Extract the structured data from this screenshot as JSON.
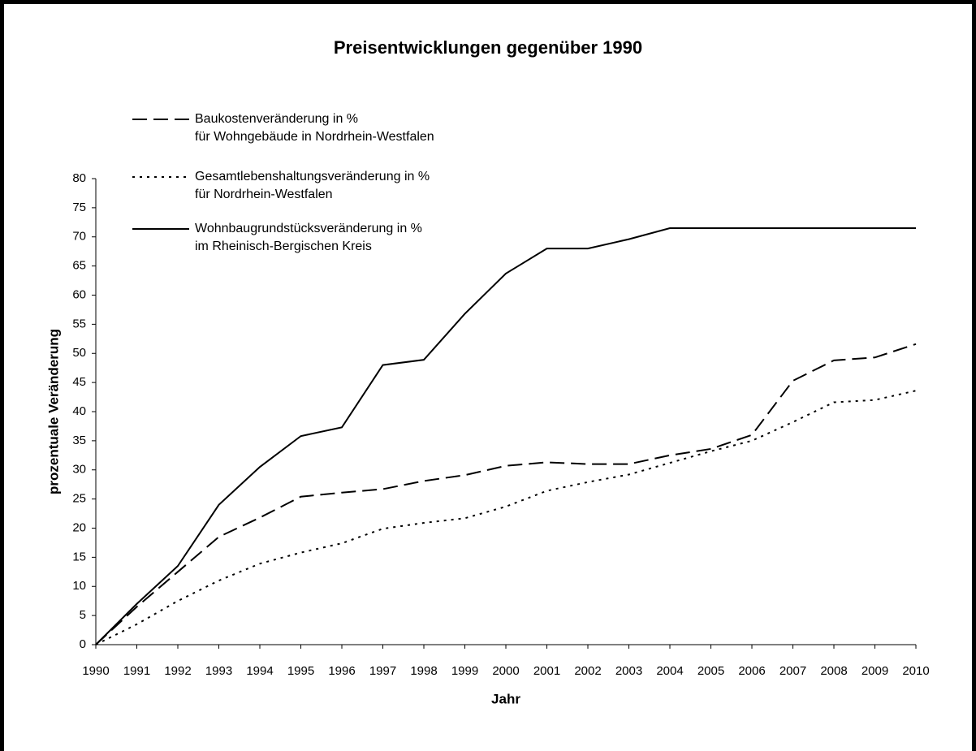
{
  "chart_data": {
    "type": "line",
    "title": "Preisentwicklungen gegenüber 1990",
    "x_label": "Jahr",
    "y_label": "prozentuale Veränderung",
    "x": [
      1990,
      1991,
      1992,
      1993,
      1994,
      1995,
      1996,
      1997,
      1998,
      1999,
      2000,
      2001,
      2002,
      2003,
      2004,
      2005,
      2006,
      2007,
      2008,
      2009,
      2010
    ],
    "xlim": [
      1990,
      2010
    ],
    "xticks": [
      1990,
      1991,
      1992,
      1993,
      1994,
      1995,
      1996,
      1997,
      1998,
      1999,
      2000,
      2001,
      2002,
      2003,
      2004,
      2005,
      2006,
      2007,
      2008,
      2009,
      2010
    ],
    "ylim": [
      0,
      80
    ],
    "yticks": [
      0,
      5,
      10,
      15,
      20,
      25,
      30,
      35,
      40,
      45,
      50,
      55,
      60,
      65,
      70,
      75,
      80
    ],
    "series": [
      {
        "name": "Baukostenveränderung in %\nfür Wohngebäude in Nordrhein-Westfalen",
        "color": "#000000",
        "line_style": "dashed",
        "values": [
          0,
          6.5,
          12.5,
          18.5,
          21.8,
          25.4,
          26.1,
          26.7,
          28.1,
          29.1,
          30.7,
          31.3,
          31,
          31,
          32.5,
          33.6,
          36,
          45.3,
          48.8,
          49.3,
          51.6
        ]
      },
      {
        "name": "Gesamtlebenshaltungsveränderung in %\nfür Nordrhein-Westfalen",
        "color": "#000000",
        "line_style": "dotted",
        "values": [
          0,
          3.5,
          7.5,
          11,
          13.9,
          15.8,
          17.4,
          19.9,
          20.9,
          21.7,
          23.7,
          26.4,
          27.9,
          29.2,
          31.2,
          33.2,
          35,
          38.2,
          41.6,
          42,
          43.6
        ]
      },
      {
        "name": "Wohnbaugrundstücksveränderung in %\nim Rheinisch-Bergischen Kreis",
        "color": "#000000",
        "line_style": "solid",
        "values": [
          0,
          7,
          13.5,
          24,
          30.5,
          35.8,
          37.3,
          48,
          48.9,
          56.8,
          63.7,
          68,
          68,
          69.6,
          71.5,
          71.5,
          71.5,
          71.5,
          71.5,
          71.5,
          71.5
        ]
      }
    ]
  }
}
